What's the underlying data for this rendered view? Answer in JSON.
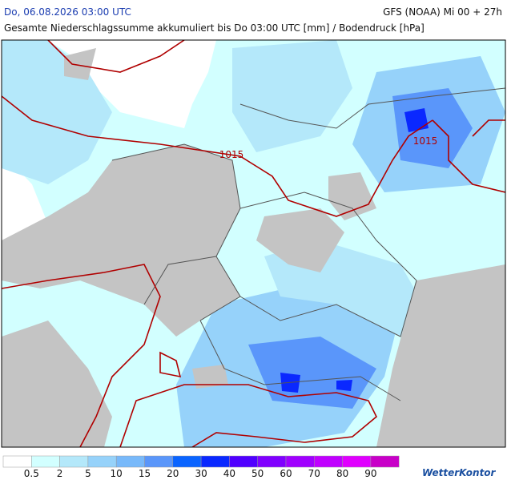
{
  "header": {
    "datetime": "Do, 06.08.2026 03:00 UTC",
    "model": "GFS (NOAA) Mi 00 + 27h",
    "title": "Gesamte Niederschlagssumme akkumuliert bis Do 03:00 UTC [mm] / Bodendruck [hPa]"
  },
  "map": {
    "isobar_labels": [
      "1015",
      "1015"
    ]
  },
  "legend": {
    "colors": [
      "#ffffff",
      "#d2ffff",
      "#b4e8fa",
      "#96d2fa",
      "#78b9fa",
      "#5a96fa",
      "#0a64ff",
      "#0a28ff",
      "#5000ff",
      "#8000ff",
      "#a000ff",
      "#c000ff",
      "#e000ff",
      "#c800c8"
    ],
    "labels": [
      0.5,
      2,
      5,
      10,
      15,
      20,
      30,
      40,
      50,
      60,
      70,
      80,
      90
    ]
  },
  "brand": "WetterKontor"
}
